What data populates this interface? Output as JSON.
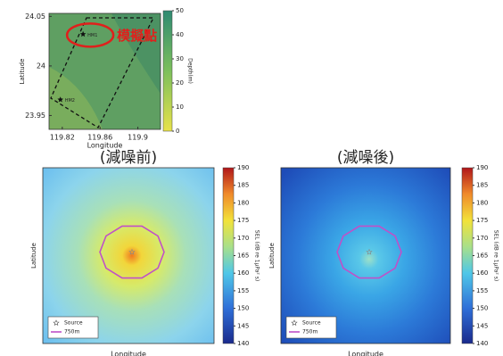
{
  "chart_data": [
    {
      "type": "map",
      "xlabel": "Longitude",
      "ylabel": "Latitude",
      "xlim": [
        119.806,
        119.924
      ],
      "ylim": [
        23.936,
        24.053
      ],
      "xticks": [
        119.82,
        119.86,
        119.9
      ],
      "yticks": [
        23.95,
        24,
        24.05
      ],
      "colorbar": {
        "label": "Depth(m)",
        "lim": [
          0,
          50
        ],
        "ticks": [
          0,
          10,
          20,
          30,
          40,
          50
        ]
      },
      "points": [
        {
          "label": "HM1",
          "x": 119.842,
          "y": 24.032
        },
        {
          "label": "HM2",
          "x": 119.818,
          "y": 23.966
        }
      ],
      "annotation": "模擬點"
    },
    {
      "type": "heatmap",
      "title": "(減噪前)",
      "xlabel": "Longitude",
      "ylabel": "Latitude",
      "colorbar": {
        "label": "SEL (dB re 1μPa² s)",
        "lim": [
          140,
          190
        ],
        "ticks": [
          140,
          145,
          150,
          155,
          160,
          165,
          170,
          175,
          180,
          185,
          190
        ]
      },
      "legend": [
        "Source",
        "750m"
      ]
    },
    {
      "type": "heatmap",
      "title": "(減噪後)",
      "xlabel": "Longitude",
      "ylabel": "Latitude",
      "colorbar": {
        "label": "SEL (dB re 1μPa² s)",
        "lim": [
          140,
          190
        ],
        "ticks": [
          140,
          145,
          150,
          155,
          160,
          165,
          170,
          175,
          180,
          185,
          190
        ]
      },
      "legend": [
        "Source",
        "750m"
      ]
    }
  ]
}
